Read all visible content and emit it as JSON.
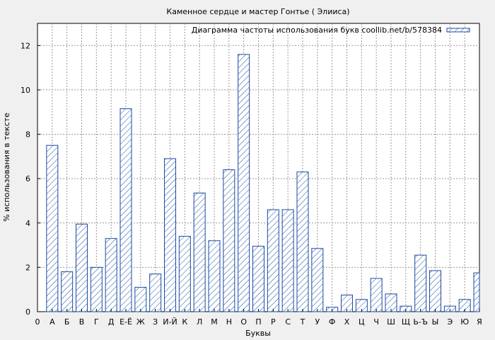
{
  "chart_data": {
    "type": "bar",
    "title": "Каменное сердце и мастер Гонтье ( Элииса)",
    "xlabel": "Буквы",
    "ylabel": "% использования в тексте",
    "legend": {
      "label": "Диаграмма частоты использования букв coollib.net/b/578384",
      "position": "top-right"
    },
    "ylim": [
      0,
      13
    ],
    "yticks": [
      "0",
      "2",
      "4",
      "6",
      "8",
      "10",
      "12"
    ],
    "grid": true,
    "bar_color": "#1a4aa0",
    "categories": [
      "0",
      "А",
      "Б",
      "В",
      "Г",
      "Д",
      "Е-Ё",
      "Ж",
      "З",
      "И-Й",
      "К",
      "Л",
      "М",
      "Н",
      "О",
      "П",
      "Р",
      "С",
      "Т",
      "У",
      "Ф",
      "Х",
      "Ц",
      "Ч",
      "Ш",
      "Щ",
      "Ь-Ъ",
      "Ы",
      "Э",
      "Ю",
      "Я"
    ],
    "values": [
      0,
      7.5,
      1.8,
      3.95,
      2.0,
      3.3,
      9.15,
      1.1,
      1.7,
      6.9,
      3.4,
      5.35,
      3.2,
      6.4,
      11.6,
      2.95,
      4.6,
      4.6,
      6.3,
      2.85,
      0.2,
      0.75,
      0.55,
      1.5,
      0.8,
      0.25,
      2.55,
      1.85,
      0.25,
      0.55,
      1.75
    ]
  }
}
